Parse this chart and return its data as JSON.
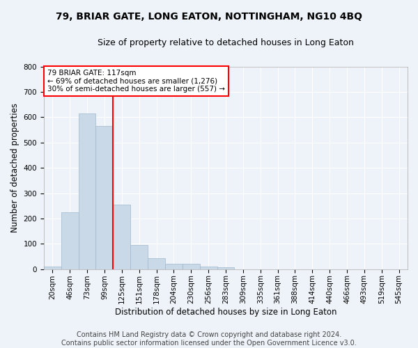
{
  "title": "79, BRIAR GATE, LONG EATON, NOTTINGHAM, NG10 4BQ",
  "subtitle": "Size of property relative to detached houses in Long Eaton",
  "xlabel": "Distribution of detached houses by size in Long Eaton",
  "ylabel": "Number of detached properties",
  "bar_values": [
    10,
    225,
    615,
    565,
    255,
    95,
    43,
    20,
    20,
    10,
    7,
    0,
    0,
    0,
    0,
    0,
    0,
    0,
    0,
    0,
    0
  ],
  "bar_labels": [
    "20sqm",
    "46sqm",
    "73sqm",
    "99sqm",
    "125sqm",
    "151sqm",
    "178sqm",
    "204sqm",
    "230sqm",
    "256sqm",
    "283sqm",
    "309sqm",
    "335sqm",
    "361sqm",
    "388sqm",
    "414sqm",
    "440sqm",
    "466sqm",
    "493sqm",
    "519sqm",
    "545sqm"
  ],
  "bar_color": "#c9d9e8",
  "bar_edgecolor": "#a0b8cc",
  "vline_color": "red",
  "vline_x": 3.5,
  "annotation_text": "79 BRIAR GATE: 117sqm\n← 69% of detached houses are smaller (1,276)\n30% of semi-detached houses are larger (557) →",
  "annotation_box_color": "white",
  "annotation_box_edgecolor": "red",
  "ylim": [
    0,
    800
  ],
  "yticks": [
    0,
    100,
    200,
    300,
    400,
    500,
    600,
    700,
    800
  ],
  "footer_line1": "Contains HM Land Registry data © Crown copyright and database right 2024.",
  "footer_line2": "Contains public sector information licensed under the Open Government Licence v3.0.",
  "bg_color": "#eef3fa",
  "plot_bg_color": "#eef3fa",
  "grid_color": "white",
  "title_fontsize": 10,
  "subtitle_fontsize": 9,
  "label_fontsize": 8.5,
  "tick_fontsize": 7.5,
  "annot_fontsize": 7.5,
  "footer_fontsize": 7
}
